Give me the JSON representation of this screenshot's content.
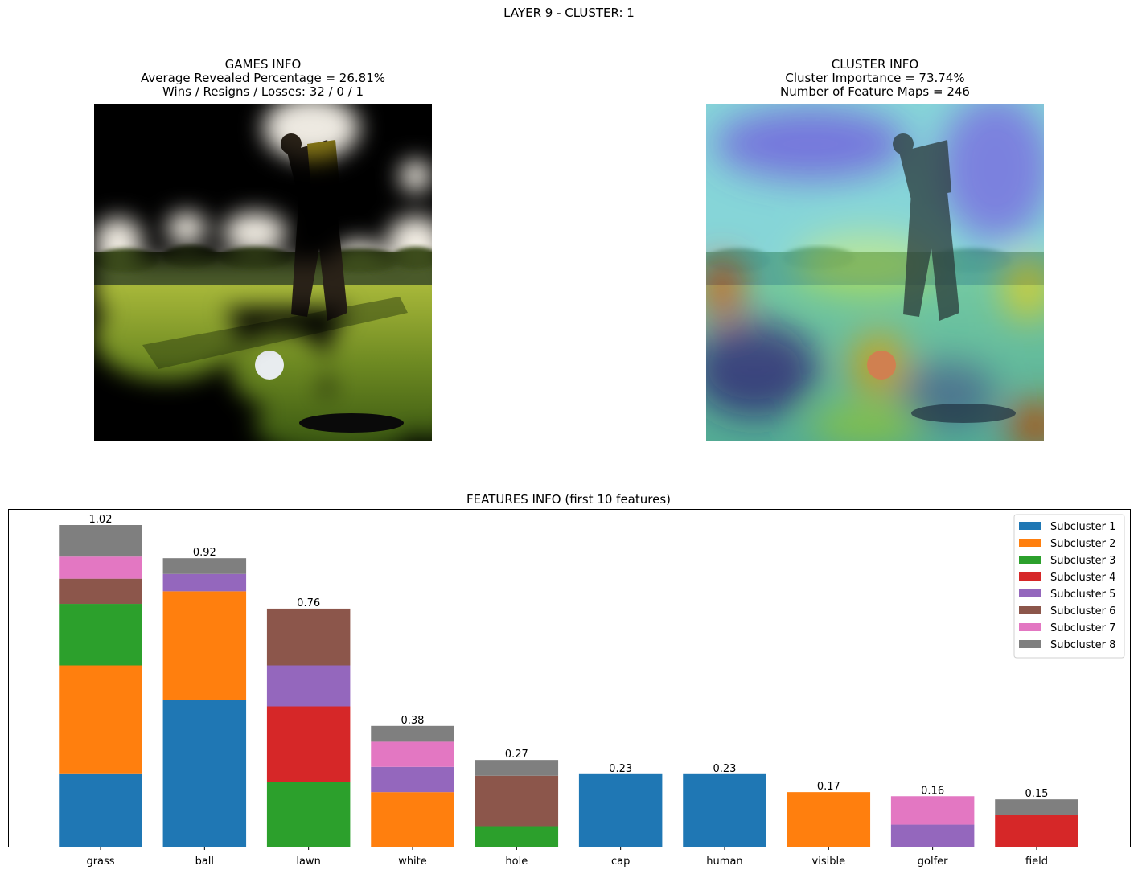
{
  "suptitle": "LAYER 9 - CLUSTER: 1",
  "games_info": {
    "title": "GAMES INFO",
    "line1": "Average Revealed Percentage = 26.81%",
    "line2": "Wins / Resigns / Losses: 32 / 0 / 1"
  },
  "cluster_info": {
    "title": "CLUSTER INFO",
    "line1": "Cluster Importance = 73.74%",
    "line2": "Number of Feature Maps = 246"
  },
  "chart_data": {
    "type": "bar",
    "stacked": true,
    "title": "FEATURES INFO (first 10 features)",
    "xlabel": "",
    "ylabel": "",
    "ylim": [
      0,
      1.071
    ],
    "grid": false,
    "legend_position": "top-right",
    "categories": [
      "grass",
      "ball",
      "lawn",
      "white",
      "hole",
      "cap",
      "human",
      "visible",
      "golfer",
      "field"
    ],
    "totals": [
      "1.02",
      "0.92",
      "0.76",
      "0.38",
      "0.27",
      "0.23",
      "0.23",
      "0.17",
      "0.16",
      "0.15"
    ],
    "series": [
      {
        "name": "Subcluster 1",
        "color": "#1f77b4",
        "values": [
          0.23,
          0.465,
          0,
          0,
          0,
          0.23,
          0.23,
          0,
          0,
          0
        ]
      },
      {
        "name": "Subcluster 2",
        "color": "#ff7f0e",
        "values": [
          0.345,
          0.345,
          0,
          0.173,
          0,
          0,
          0,
          0.173,
          0,
          0
        ]
      },
      {
        "name": "Subcluster 3",
        "color": "#2ca02c",
        "values": [
          0.195,
          0,
          0.205,
          0,
          0.065,
          0,
          0,
          0,
          0,
          0
        ]
      },
      {
        "name": "Subcluster 4",
        "color": "#d62728",
        "values": [
          0,
          0,
          0.24,
          0,
          0,
          0,
          0,
          0,
          0,
          0.1
        ]
      },
      {
        "name": "Subcluster 5",
        "color": "#9467bd",
        "values": [
          0,
          0.055,
          0.13,
          0.08,
          0,
          0,
          0,
          0,
          0.07,
          0
        ]
      },
      {
        "name": "Subcluster 6",
        "color": "#8c564b",
        "values": [
          0.08,
          0,
          0.18,
          0,
          0.16,
          0,
          0,
          0,
          0,
          0
        ]
      },
      {
        "name": "Subcluster 7",
        "color": "#e377c2",
        "values": [
          0.07,
          0,
          0,
          0.08,
          0,
          0,
          0,
          0,
          0.09,
          0
        ]
      },
      {
        "name": "Subcluster 8",
        "color": "#7f7f7f",
        "values": [
          0.1,
          0.05,
          0,
          0.05,
          0.05,
          0,
          0,
          0,
          0,
          0.05
        ]
      }
    ]
  }
}
